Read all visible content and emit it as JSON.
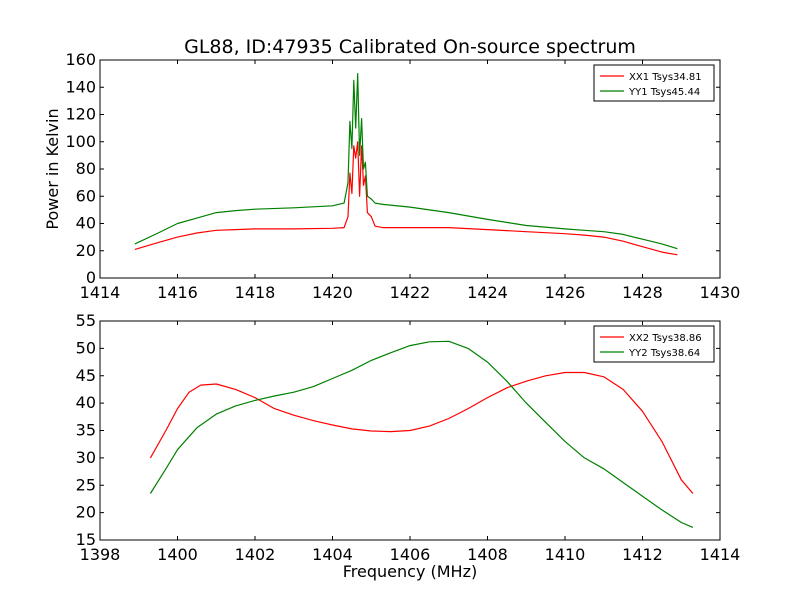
{
  "chart_data": [
    {
      "type": "line",
      "title": "GL88, ID:47935 Calibrated On-source spectrum",
      "xlabel": "",
      "ylabel": "Power in Kelvin",
      "xlim": [
        1414,
        1430
      ],
      "ylim": [
        0,
        160
      ],
      "xticks": [
        "1414",
        "1416",
        "1418",
        "1420",
        "1422",
        "1424",
        "1426",
        "1428",
        "1430"
      ],
      "yticks": [
        "0",
        "20",
        "40",
        "60",
        "80",
        "100",
        "120",
        "140",
        "160"
      ],
      "legend_position": "top-right",
      "grid": false,
      "series": [
        {
          "name": "XX1 Tsys34.81",
          "color": "#ff0000",
          "x": [
            1414.9,
            1415.5,
            1416.0,
            1416.5,
            1417.0,
            1417.5,
            1418.0,
            1419.0,
            1420.0,
            1420.3,
            1420.4,
            1420.45,
            1420.5,
            1420.55,
            1420.6,
            1420.65,
            1420.7,
            1420.75,
            1420.8,
            1420.85,
            1420.9,
            1421.0,
            1421.1,
            1421.3,
            1422.0,
            1423.0,
            1424.0,
            1425.0,
            1426.0,
            1426.5,
            1427.0,
            1427.5,
            1428.0,
            1428.5,
            1428.9
          ],
          "y": [
            21,
            26,
            30,
            33,
            35,
            35.5,
            36,
            36,
            36.5,
            37,
            45,
            77,
            62,
            97,
            88,
            100,
            60,
            97,
            68,
            75,
            48,
            45,
            38,
            37,
            37,
            37,
            35.5,
            34,
            32.5,
            31.5,
            30,
            27,
            23,
            19,
            17
          ]
        },
        {
          "name": "YY1 Tsys45.44",
          "color": "#008000",
          "x": [
            1414.9,
            1415.5,
            1416.0,
            1416.5,
            1417.0,
            1417.5,
            1418.0,
            1419.0,
            1420.0,
            1420.3,
            1420.4,
            1420.45,
            1420.5,
            1420.55,
            1420.6,
            1420.65,
            1420.7,
            1420.75,
            1420.8,
            1420.85,
            1420.9,
            1421.0,
            1421.1,
            1421.3,
            1422.0,
            1423.0,
            1424.0,
            1425.0,
            1426.0,
            1426.5,
            1427.0,
            1427.5,
            1428.0,
            1428.5,
            1428.9
          ],
          "y": [
            25,
            33,
            40,
            44,
            48,
            49.5,
            50.5,
            51.5,
            53,
            55,
            70,
            115,
            95,
            145,
            110,
            150,
            90,
            117,
            80,
            85,
            60,
            58,
            55,
            54,
            52,
            48,
            43,
            38.5,
            36,
            35,
            34,
            32,
            28.5,
            25,
            21.5
          ]
        }
      ]
    },
    {
      "type": "line",
      "title": "",
      "xlabel": "Frequency (MHz)",
      "ylabel": "",
      "xlim": [
        1398,
        1414
      ],
      "ylim": [
        15,
        55
      ],
      "xticks": [
        "1398",
        "1400",
        "1402",
        "1404",
        "1406",
        "1408",
        "1410",
        "1412",
        "1414"
      ],
      "yticks": [
        "15",
        "20",
        "25",
        "30",
        "35",
        "40",
        "45",
        "50",
        "55"
      ],
      "legend_position": "top-right",
      "grid": false,
      "series": [
        {
          "name": "XX2 Tsys38.86",
          "color": "#ff0000",
          "x": [
            1399.3,
            1399.7,
            1400.0,
            1400.3,
            1400.6,
            1401.0,
            1401.5,
            1402.0,
            1402.5,
            1403.0,
            1403.5,
            1404.0,
            1404.5,
            1405.0,
            1405.5,
            1406.0,
            1406.5,
            1407.0,
            1407.5,
            1408.0,
            1408.5,
            1409.0,
            1409.5,
            1410.0,
            1410.5,
            1411.0,
            1411.5,
            1412.0,
            1412.5,
            1413.0,
            1413.3
          ],
          "y": [
            30,
            35,
            39,
            42,
            43.3,
            43.5,
            42.5,
            41,
            39,
            37.8,
            36.8,
            36,
            35.3,
            34.9,
            34.8,
            35,
            35.8,
            37.2,
            39,
            41,
            42.8,
            44,
            45,
            45.6,
            45.6,
            44.8,
            42.5,
            38.5,
            33,
            26,
            23.5
          ]
        },
        {
          "name": "YY2 Tsys38.64",
          "color": "#008000",
          "x": [
            1399.3,
            1399.7,
            1400.0,
            1400.5,
            1401.0,
            1401.5,
            1402.0,
            1402.5,
            1403.0,
            1403.5,
            1404.0,
            1404.5,
            1405.0,
            1405.5,
            1406.0,
            1406.5,
            1407.0,
            1407.5,
            1408.0,
            1408.5,
            1409.0,
            1409.5,
            1410.0,
            1410.5,
            1411.0,
            1411.5,
            1412.0,
            1412.5,
            1413.0,
            1413.3
          ],
          "y": [
            23.5,
            28,
            31.5,
            35.5,
            38,
            39.5,
            40.5,
            41.3,
            42,
            43,
            44.5,
            46,
            47.8,
            49.2,
            50.5,
            51.2,
            51.3,
            50,
            47.5,
            44,
            40,
            36.5,
            33,
            30,
            28,
            25.5,
            23,
            20.5,
            18.2,
            17.3
          ]
        }
      ]
    }
  ]
}
